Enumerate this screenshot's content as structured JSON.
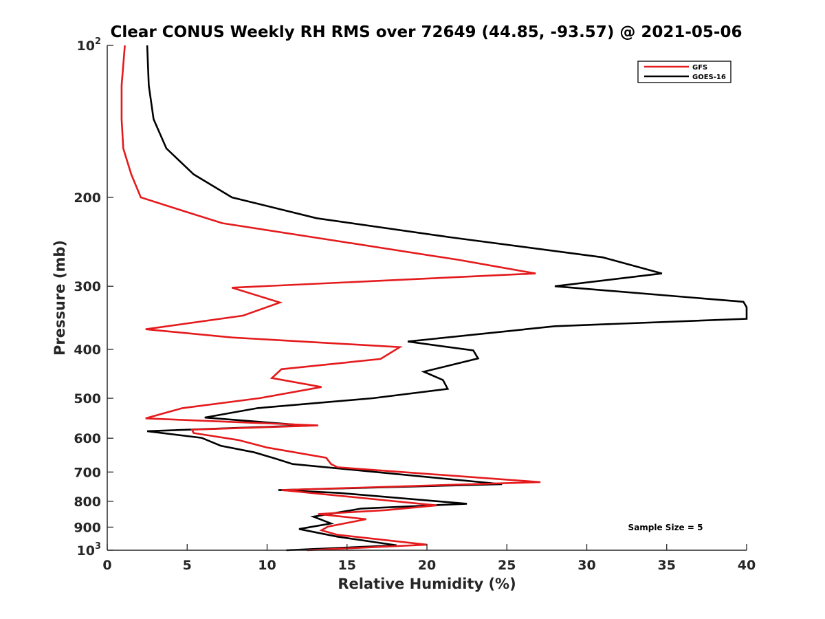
{
  "chart_data": {
    "type": "line",
    "orientation": "profile (x = value, y = pressure)",
    "title": "Clear CONUS Weekly RH RMS over 72649 (44.85, -93.57) @ 2021-05-06",
    "xlabel": "Relative Humidity (%)",
    "ylabel": "Pressure (mb)",
    "xlim": [
      0,
      40
    ],
    "ylim": [
      1000,
      100
    ],
    "y_scale": "log",
    "y_reversed": true,
    "grid": false,
    "legend_position": "top-right",
    "x_ticks": [
      "0",
      "5",
      "10",
      "15",
      "20",
      "25",
      "30",
      "35",
      "40"
    ],
    "y_ticks": [
      {
        "value": 100,
        "base": "10",
        "exp": "2"
      },
      {
        "value": 200,
        "label": "200"
      },
      {
        "value": 300,
        "label": "300"
      },
      {
        "value": 400,
        "label": "400"
      },
      {
        "value": 500,
        "label": "500"
      },
      {
        "value": 600,
        "label": "600"
      },
      {
        "value": 700,
        "label": "700"
      },
      {
        "value": 800,
        "label": "800"
      },
      {
        "value": 900,
        "label": "900"
      },
      {
        "value": 1000,
        "base": "10",
        "exp": "3"
      }
    ],
    "annotation": "Sample Size = 5",
    "series": [
      {
        "name": "GFS",
        "color": "#e41a1c",
        "points": [
          [
            1.1,
            100
          ],
          [
            0.9,
            120
          ],
          [
            0.9,
            140
          ],
          [
            1.0,
            160
          ],
          [
            1.5,
            180
          ],
          [
            2.1,
            200
          ],
          [
            4.8,
            213
          ],
          [
            7.2,
            225
          ],
          [
            14.0,
            243
          ],
          [
            22.0,
            266
          ],
          [
            26.8,
            283
          ],
          [
            7.8,
            302
          ],
          [
            10.8,
            323
          ],
          [
            8.5,
            343
          ],
          [
            2.4,
            365
          ],
          [
            7.8,
            379
          ],
          [
            18.3,
            396
          ],
          [
            17.1,
            418
          ],
          [
            10.9,
            438
          ],
          [
            10.3,
            456
          ],
          [
            13.4,
            475
          ],
          [
            9.5,
            500
          ],
          [
            4.7,
            523
          ],
          [
            2.4,
            548
          ],
          [
            13.2,
            566
          ],
          [
            5.3,
            577
          ],
          [
            5.4,
            586
          ],
          [
            8.2,
            605
          ],
          [
            10.0,
            626
          ],
          [
            13.7,
            656
          ],
          [
            14.0,
            675
          ],
          [
            14.4,
            685
          ],
          [
            27.1,
            733
          ],
          [
            10.9,
            760
          ],
          [
            13.6,
            775
          ],
          [
            20.6,
            815
          ],
          [
            17.4,
            833
          ],
          [
            13.2,
            848
          ],
          [
            16.2,
            868
          ],
          [
            13.8,
            898
          ],
          [
            13.4,
            913
          ],
          [
            14.4,
            932
          ],
          [
            20.0,
            975
          ],
          [
            12.5,
            1000
          ]
        ]
      },
      {
        "name": "GOES-16",
        "color": "#000000",
        "points": [
          [
            2.5,
            100
          ],
          [
            2.6,
            120
          ],
          [
            2.9,
            140
          ],
          [
            3.7,
            160
          ],
          [
            5.4,
            180
          ],
          [
            7.8,
            200
          ],
          [
            13.1,
            220
          ],
          [
            21.5,
            240
          ],
          [
            31.0,
            263
          ],
          [
            34.7,
            283
          ],
          [
            28.0,
            300
          ],
          [
            39.8,
            322
          ],
          [
            40.0,
            330
          ],
          [
            40.0,
            348
          ],
          [
            28.0,
            360
          ],
          [
            18.8,
            386
          ],
          [
            22.9,
            402
          ],
          [
            23.2,
            417
          ],
          [
            19.8,
            443
          ],
          [
            21.0,
            460
          ],
          [
            21.3,
            479
          ],
          [
            16.6,
            500
          ],
          [
            9.4,
            523
          ],
          [
            6.1,
            546
          ],
          [
            12.4,
            566
          ],
          [
            2.5,
            581
          ],
          [
            5.9,
            599
          ],
          [
            7.1,
            621
          ],
          [
            9.2,
            640
          ],
          [
            10.5,
            658
          ],
          [
            11.6,
            675
          ],
          [
            24.7,
            740
          ],
          [
            10.7,
            760
          ],
          [
            14.5,
            770
          ],
          [
            22.5,
            809
          ],
          [
            15.9,
            827
          ],
          [
            12.9,
            858
          ],
          [
            14.0,
            885
          ],
          [
            12.0,
            908
          ],
          [
            14.4,
            940
          ],
          [
            18.1,
            978
          ],
          [
            11.2,
            1000
          ]
        ]
      }
    ]
  }
}
